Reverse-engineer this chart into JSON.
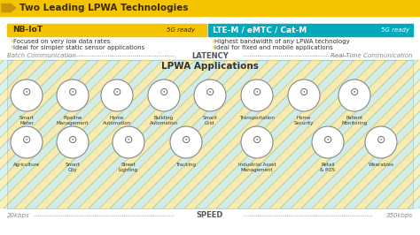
{
  "title": "Two Leading LPWA Technologies",
  "title_bg": "#F5C400",
  "title_color": "#3a2a00",
  "bg_color": "#ffffff",
  "nb_iot_label": "NB-IoT",
  "nb_iot_bg": "#F5C400",
  "nb_iot_text_color": "#3a2a00",
  "nb_iot_5g": "5G ready",
  "lte_m_label": "LTE-M / eMTC / Cat-M",
  "lte_m_bg": "#00AABB",
  "lte_m_text_color": "#ffffff",
  "lte_m_5g": "5G ready",
  "nb_bullets": [
    "Focused on very low data rates",
    "Ideal for simpler static sensor applications"
  ],
  "lte_bullets": [
    "Highest bandwidth of any LPWA technology",
    "Ideal for fixed and mobile applications"
  ],
  "bullet_color": "#F5C400",
  "latency_left": "Batch Communication",
  "latency_center": "LATENCY",
  "latency_right": "Real-Time Communication",
  "speed_left": "20kbps",
  "speed_center": "SPEED",
  "speed_right": "350kbps",
  "app_title": "LPWA Applications",
  "box_bg": "#f8f8f0",
  "stripe_color_yellow": "#F5C400",
  "stripe_color_cyan": "#00AABB",
  "apps_row1": [
    "Smart\nMeter",
    "Pipeline\nManagement",
    "Home\nAutomation",
    "Building\nAutomation",
    "Smart\nGrid",
    "Transportation",
    "Home\nSecurity",
    "Patient\nMonitoring"
  ],
  "apps_row2": [
    "Agriculture",
    "Smart\nCity",
    "Street\nLighting",
    "Tracking",
    "Industrial Asset\nManagement",
    "Retail\n& POS",
    "Wearables"
  ],
  "text_color": "#555555"
}
